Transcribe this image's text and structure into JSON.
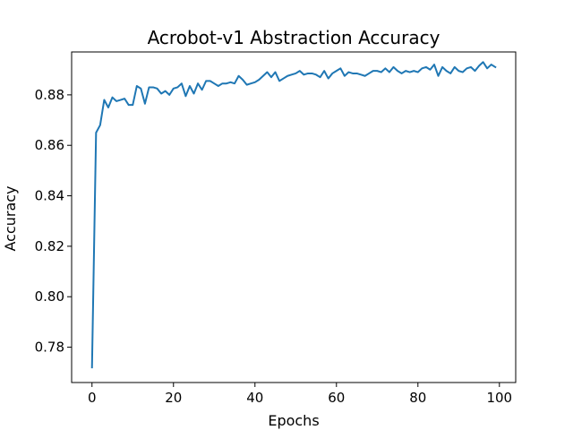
{
  "chart_data": {
    "type": "line",
    "title": "Acrobot-v1 Abstraction Accuracy",
    "xlabel": "Epochs",
    "ylabel": "Accuracy",
    "xlim": [
      -5,
      104
    ],
    "ylim": [
      0.766,
      0.897
    ],
    "xticks": [
      0,
      20,
      40,
      60,
      80,
      100
    ],
    "xtick_labels": [
      "0",
      "20",
      "40",
      "60",
      "80",
      "100"
    ],
    "yticks": [
      0.78,
      0.8,
      0.82,
      0.84,
      0.86,
      0.88
    ],
    "ytick_labels": [
      "0.78",
      "0.80",
      "0.82",
      "0.84",
      "0.86",
      "0.88"
    ],
    "grid": false,
    "line_color": "#1f77b4",
    "series": [
      {
        "x": [
          0,
          1,
          2,
          3,
          4,
          5,
          6,
          7,
          8,
          9,
          10,
          11,
          12,
          13,
          14,
          15,
          16,
          17,
          18,
          19,
          20,
          21,
          22,
          23,
          24,
          25,
          26,
          27,
          28,
          29,
          30,
          31,
          32,
          33,
          34,
          35,
          36,
          37,
          38,
          39,
          40,
          41,
          42,
          43,
          44,
          45,
          46,
          47,
          48,
          49,
          50,
          51,
          52,
          53,
          54,
          55,
          56,
          57,
          58,
          59,
          60,
          61,
          62,
          63,
          64,
          65,
          66,
          67,
          68,
          69,
          70,
          71,
          72,
          73,
          74,
          75,
          76,
          77,
          78,
          79,
          80,
          81,
          82,
          83,
          84,
          85,
          86,
          87,
          88,
          89,
          90,
          91,
          92,
          93,
          94,
          95,
          96,
          97,
          98,
          99
        ],
        "values": [
          0.772,
          0.865,
          0.868,
          0.878,
          0.875,
          0.879,
          0.8775,
          0.878,
          0.8785,
          0.876,
          0.876,
          0.8835,
          0.8825,
          0.8765,
          0.883,
          0.883,
          0.8825,
          0.8805,
          0.8815,
          0.88,
          0.8825,
          0.883,
          0.8845,
          0.8795,
          0.8835,
          0.8805,
          0.8845,
          0.882,
          0.8855,
          0.8855,
          0.8845,
          0.8835,
          0.8845,
          0.8845,
          0.885,
          0.8845,
          0.8875,
          0.886,
          0.884,
          0.8845,
          0.885,
          0.886,
          0.8875,
          0.889,
          0.887,
          0.889,
          0.8855,
          0.8865,
          0.8875,
          0.888,
          0.8885,
          0.8895,
          0.888,
          0.8885,
          0.8885,
          0.888,
          0.887,
          0.8895,
          0.8865,
          0.8885,
          0.8895,
          0.8905,
          0.8875,
          0.889,
          0.8885,
          0.8885,
          0.888,
          0.8875,
          0.8885,
          0.8895,
          0.8895,
          0.889,
          0.8905,
          0.889,
          0.891,
          0.8895,
          0.8885,
          0.8895,
          0.889,
          0.8895,
          0.889,
          0.8905,
          0.891,
          0.89,
          0.892,
          0.8875,
          0.891,
          0.8895,
          0.8885,
          0.891,
          0.8895,
          0.889,
          0.8905,
          0.891,
          0.8895,
          0.8915,
          0.893,
          0.8905,
          0.892,
          0.891
        ]
      }
    ]
  }
}
